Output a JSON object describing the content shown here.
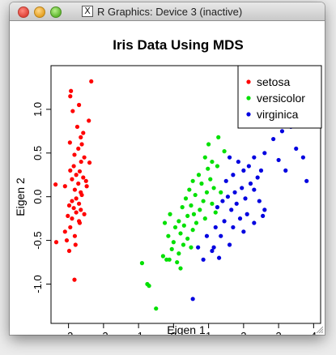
{
  "window": {
    "title": "R Graphics: Device 3 (inactive)",
    "x11_glyph": "X"
  },
  "chart_data": {
    "type": "scatter",
    "title": "Iris Data Using MDS",
    "xlabel": "Eigen 1",
    "ylabel": "Eigen 2",
    "xlim": [
      -3.5,
      4.2
    ],
    "ylim": [
      -1.45,
      1.5
    ],
    "xticks": [
      -3,
      -2,
      -1,
      0,
      1,
      2,
      3,
      4
    ],
    "yticks": [
      -1.0,
      -0.5,
      0.0,
      0.5,
      1.0
    ],
    "ytick_labels": [
      "-1.0",
      "-0.5",
      "0.0",
      "0.5",
      "1.0"
    ],
    "legend": {
      "position": "top-right"
    },
    "series": [
      {
        "name": "setosa",
        "color": "#ff0000",
        "points": [
          [
            -2.35,
            1.32
          ],
          [
            -2.93,
            1.21
          ],
          [
            -2.95,
            1.15
          ],
          [
            -2.7,
            1.05
          ],
          [
            -2.88,
            0.98
          ],
          [
            -2.42,
            0.87
          ],
          [
            -2.75,
            0.8
          ],
          [
            -2.58,
            0.73
          ],
          [
            -2.65,
            0.68
          ],
          [
            -2.96,
            0.62
          ],
          [
            -2.62,
            0.6
          ],
          [
            -2.72,
            0.55
          ],
          [
            -2.83,
            0.48
          ],
          [
            -2.55,
            0.45
          ],
          [
            -2.64,
            0.4
          ],
          [
            -2.4,
            0.39
          ],
          [
            -2.85,
            0.35
          ],
          [
            -2.95,
            0.3
          ],
          [
            -2.68,
            0.29
          ],
          [
            -2.78,
            0.25
          ],
          [
            -2.58,
            0.22
          ],
          [
            -2.9,
            0.2
          ],
          [
            -2.72,
            0.15
          ],
          [
            -3.1,
            0.12
          ],
          [
            -2.48,
            0.12
          ],
          [
            -2.82,
            0.08
          ],
          [
            -2.65,
            0.05
          ],
          [
            -3.37,
            0.14
          ],
          [
            -2.9,
            -0.05
          ],
          [
            -2.7,
            -0.08
          ],
          [
            -2.98,
            -0.1
          ],
          [
            -2.85,
            -0.13
          ],
          [
            -2.65,
            -0.15
          ],
          [
            -2.78,
            -0.18
          ],
          [
            -2.55,
            -0.2
          ],
          [
            -3.02,
            -0.22
          ],
          [
            -2.9,
            -0.25
          ],
          [
            -2.7,
            -0.28
          ],
          [
            -2.95,
            -0.35
          ],
          [
            -3.1,
            -0.4
          ],
          [
            -2.82,
            -0.45
          ],
          [
            -2.68,
            -0.3
          ],
          [
            -3.35,
            -0.52
          ],
          [
            -3.05,
            -0.5
          ],
          [
            -2.8,
            -0.55
          ],
          [
            -2.98,
            -0.62
          ],
          [
            -2.83,
            -0.95
          ],
          [
            -2.62,
            0.02
          ],
          [
            -2.5,
            0.18
          ],
          [
            -2.78,
            -0.02
          ]
        ]
      },
      {
        "name": "versicolor",
        "color": "#00e000",
        "points": [
          [
            1.28,
            0.68
          ],
          [
            1.45,
            0.52
          ],
          [
            0.9,
            0.45
          ],
          [
            1.1,
            0.4
          ],
          [
            1.25,
            0.35
          ],
          [
            0.98,
            0.32
          ],
          [
            0.72,
            0.25
          ],
          [
            1.05,
            0.2
          ],
          [
            0.55,
            0.18
          ],
          [
            0.8,
            0.15
          ],
          [
            1.15,
            0.1
          ],
          [
            0.45,
            0.08
          ],
          [
            0.95,
            0.05
          ],
          [
            1.35,
            0.05
          ],
          [
            0.62,
            0.02
          ],
          [
            0.35,
            -0.02
          ],
          [
            0.85,
            -0.05
          ],
          [
            1.1,
            -0.08
          ],
          [
            0.5,
            -0.1
          ],
          [
            0.25,
            -0.12
          ],
          [
            0.75,
            -0.15
          ],
          [
            1.2,
            -0.18
          ],
          [
            0.58,
            -0.2
          ],
          [
            -0.1,
            -0.2
          ],
          [
            0.4,
            -0.22
          ],
          [
            0.9,
            -0.25
          ],
          [
            0.15,
            -0.28
          ],
          [
            0.65,
            -0.3
          ],
          [
            -0.25,
            -0.3
          ],
          [
            0.3,
            -0.33
          ],
          [
            0.05,
            -0.35
          ],
          [
            0.55,
            -0.38
          ],
          [
            0.2,
            -0.42
          ],
          [
            -0.15,
            -0.45
          ],
          [
            0.4,
            -0.48
          ],
          [
            0.0,
            -0.52
          ],
          [
            0.28,
            -0.55
          ],
          [
            -0.05,
            -0.6
          ],
          [
            0.5,
            -0.58
          ],
          [
            0.15,
            -0.65
          ],
          [
            -0.3,
            -0.68
          ],
          [
            -0.2,
            -0.72
          ],
          [
            0.1,
            -0.75
          ],
          [
            -0.12,
            -0.72
          ],
          [
            0.2,
            -0.82
          ],
          [
            -0.9,
            -0.76
          ],
          [
            -0.75,
            -1.0
          ],
          [
            -0.7,
            -1.02
          ],
          [
            -0.5,
            -1.28
          ],
          [
            1.0,
            0.6
          ]
        ]
      },
      {
        "name": "virginica",
        "color": "#0000e0",
        "points": [
          [
            3.22,
            1.38
          ],
          [
            3.5,
            1.17
          ],
          [
            3.05,
            0.95
          ],
          [
            3.35,
            0.8
          ],
          [
            3.1,
            0.75
          ],
          [
            2.85,
            0.66
          ],
          [
            3.5,
            0.55
          ],
          [
            3.7,
            0.45
          ],
          [
            2.6,
            0.5
          ],
          [
            2.3,
            0.45
          ],
          [
            3.0,
            0.42
          ],
          [
            1.6,
            0.45
          ],
          [
            1.85,
            0.4
          ],
          [
            2.15,
            0.35
          ],
          [
            2.5,
            0.3
          ],
          [
            3.2,
            0.3
          ],
          [
            3.8,
            0.18
          ],
          [
            2.0,
            0.3
          ],
          [
            1.7,
            0.25
          ],
          [
            2.4,
            0.22
          ],
          [
            1.5,
            0.18
          ],
          [
            2.2,
            0.15
          ],
          [
            1.95,
            0.1
          ],
          [
            1.75,
            0.05
          ],
          [
            2.3,
            0.08
          ],
          [
            1.55,
            0.0
          ],
          [
            2.05,
            -0.02
          ],
          [
            2.45,
            -0.05
          ],
          [
            1.8,
            -0.08
          ],
          [
            1.4,
            -0.05
          ],
          [
            1.25,
            -0.12
          ],
          [
            1.65,
            -0.15
          ],
          [
            2.1,
            -0.2
          ],
          [
            2.55,
            -0.22
          ],
          [
            1.9,
            -0.25
          ],
          [
            1.45,
            -0.28
          ],
          [
            2.3,
            -0.3
          ],
          [
            1.2,
            -0.35
          ],
          [
            1.7,
            -0.35
          ],
          [
            2.0,
            -0.4
          ],
          [
            1.35,
            -0.45
          ],
          [
            0.95,
            -0.45
          ],
          [
            1.6,
            -0.55
          ],
          [
            1.15,
            -0.58
          ],
          [
            1.1,
            -0.62
          ],
          [
            0.7,
            -0.58
          ],
          [
            1.3,
            -0.7
          ],
          [
            0.85,
            -0.72
          ],
          [
            2.6,
            -0.15
          ],
          [
            0.55,
            -1.17
          ]
        ]
      }
    ]
  }
}
